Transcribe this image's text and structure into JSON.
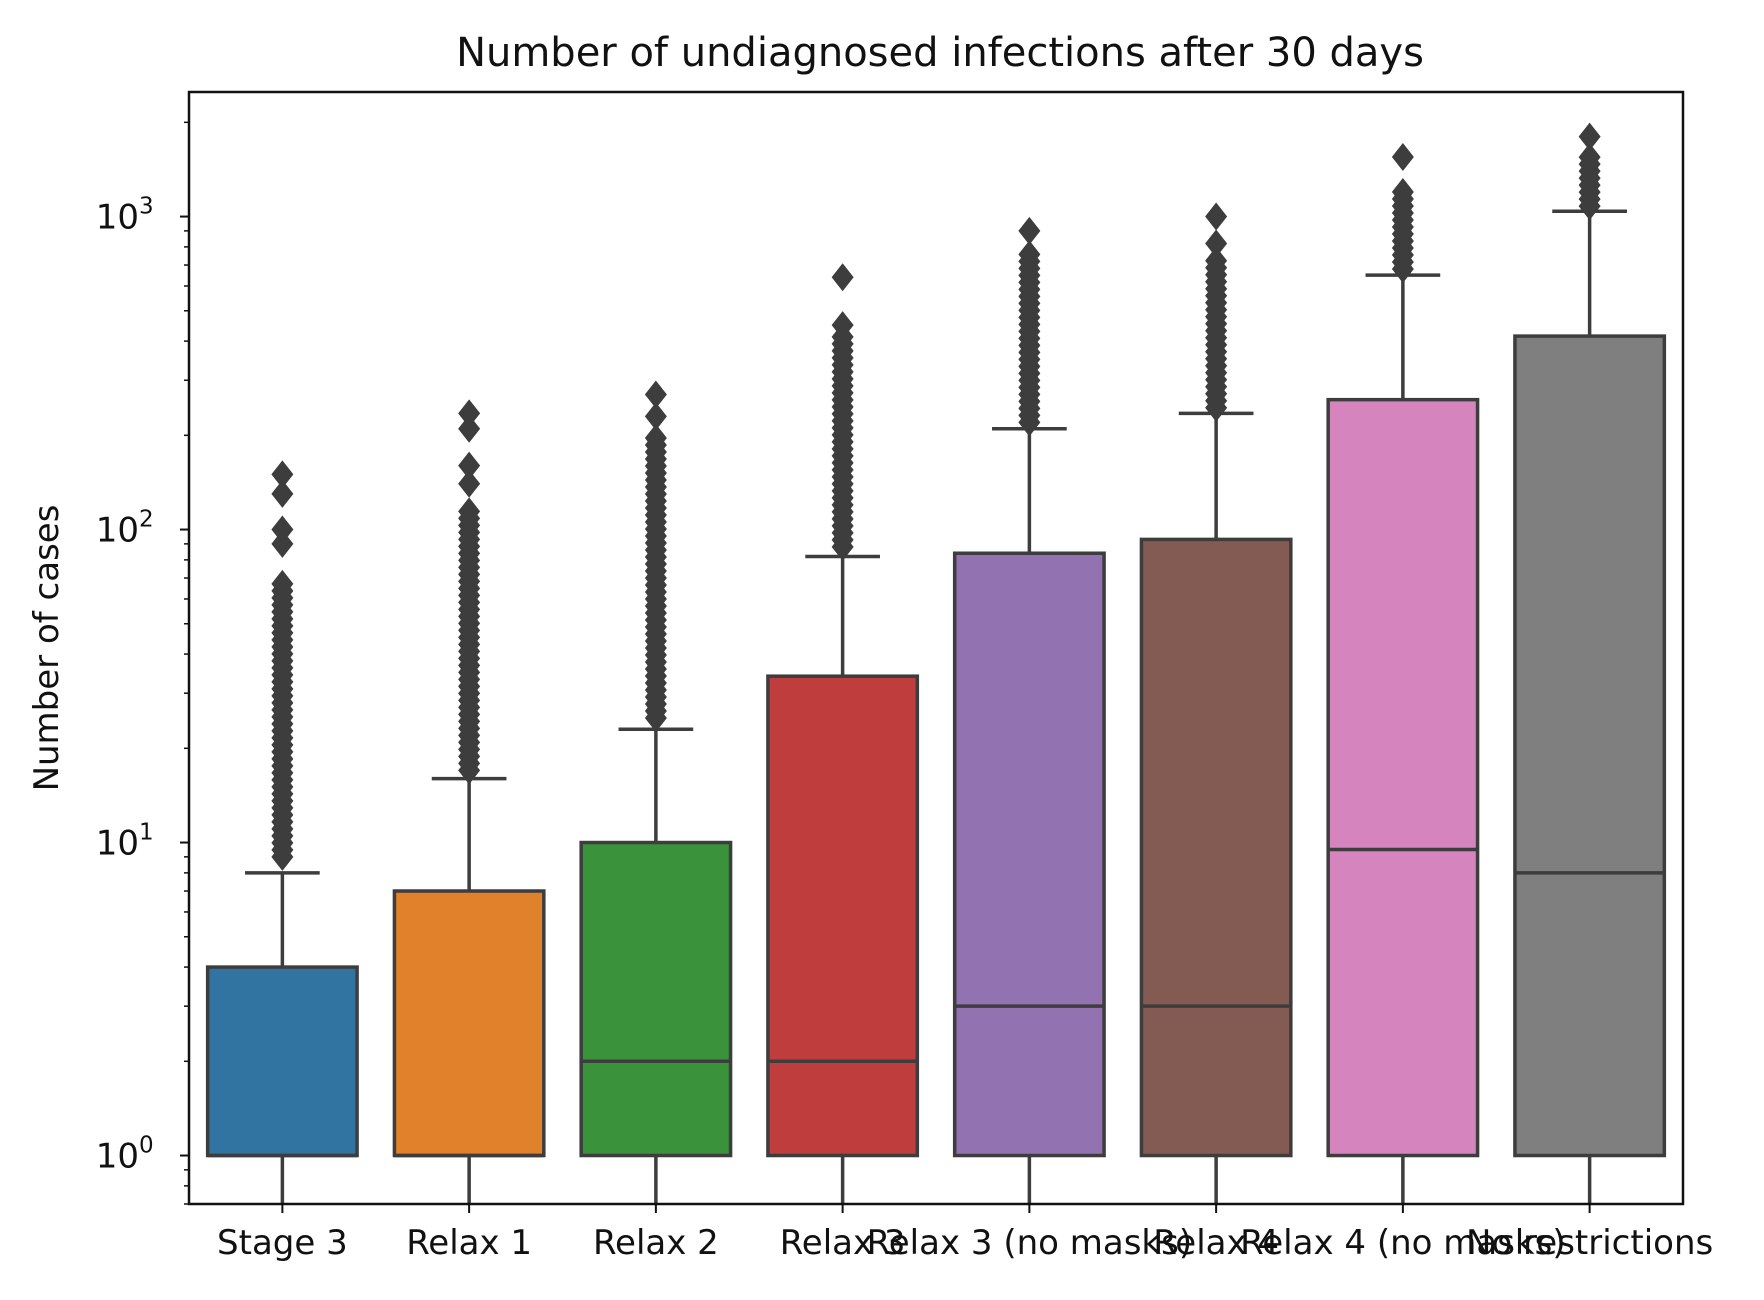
{
  "chart_data": {
    "type": "box",
    "title": "Number of undiagnosed infections after 30 days",
    "xlabel": "",
    "ylabel": "Number of cases",
    "yscale": "log",
    "ylim": [
      0.7,
      2500
    ],
    "yticks": [
      {
        "value": 1,
        "base": "10",
        "exp": "0"
      },
      {
        "value": 10,
        "base": "10",
        "exp": "1"
      },
      {
        "value": 100,
        "base": "10",
        "exp": "2"
      },
      {
        "value": 1000,
        "base": "10",
        "exp": "3"
      }
    ],
    "categories": [
      "Stage 3",
      "Relax 1",
      "Relax 2",
      "Relax 3",
      "Relax 3 (no masks)",
      "Relax 4",
      "Relax 4 (no masks)",
      "No restrictions"
    ],
    "boxes": [
      {
        "name": "Stage 3",
        "color": "#3274a1",
        "whisker_low": 0.7,
        "q1": 1,
        "median": 1,
        "q3": 4,
        "whisker_high": 8,
        "outliers_range": [
          9,
          70
        ],
        "outliers": [
          90,
          100,
          130,
          150
        ]
      },
      {
        "name": "Relax 1",
        "color": "#e1812c",
        "whisker_low": 0.7,
        "q1": 1,
        "median": 1,
        "q3": 7,
        "whisker_high": 16,
        "outliers_range": [
          17,
          120
        ],
        "outliers": [
          140,
          160,
          210,
          235
        ]
      },
      {
        "name": "Relax 2",
        "color": "#3a923a",
        "whisker_low": 0.7,
        "q1": 1,
        "median": 2,
        "q3": 10,
        "whisker_high": 23,
        "outliers_range": [
          25,
          200
        ],
        "outliers": [
          230,
          270
        ]
      },
      {
        "name": "Relax 3",
        "color": "#c03d3e",
        "whisker_low": 0.7,
        "q1": 1,
        "median": 2,
        "q3": 34,
        "whisker_high": 82,
        "outliers_range": [
          88,
          420
        ],
        "outliers": [
          450,
          640
        ]
      },
      {
        "name": "Relax 3 (no masks)",
        "color": "#9372b2",
        "whisker_low": 0.7,
        "q1": 1,
        "median": 3,
        "q3": 84,
        "whisker_high": 210,
        "outliers_range": [
          220,
          780
        ],
        "outliers": [
          900
        ]
      },
      {
        "name": "Relax 4",
        "color": "#845b53",
        "whisker_low": 0.7,
        "q1": 1,
        "median": 3,
        "q3": 93,
        "whisker_high": 235,
        "outliers_range": [
          245,
          760
        ],
        "outliers": [
          820,
          1000
        ]
      },
      {
        "name": "Relax 4 (no masks)",
        "color": "#d684bd",
        "whisker_low": 0.7,
        "q1": 1,
        "median": 9.5,
        "q3": 260,
        "whisker_high": 650,
        "outliers_range": [
          680,
          1250
        ],
        "outliers": [
          1550
        ]
      },
      {
        "name": "No restrictions",
        "color": "#7f7f7f",
        "whisker_low": 0.7,
        "q1": 1,
        "median": 8,
        "q3": 415,
        "whisker_high": 1040,
        "outliers_range": [
          1080,
          1600
        ],
        "outliers": [
          1800
        ]
      }
    ]
  }
}
